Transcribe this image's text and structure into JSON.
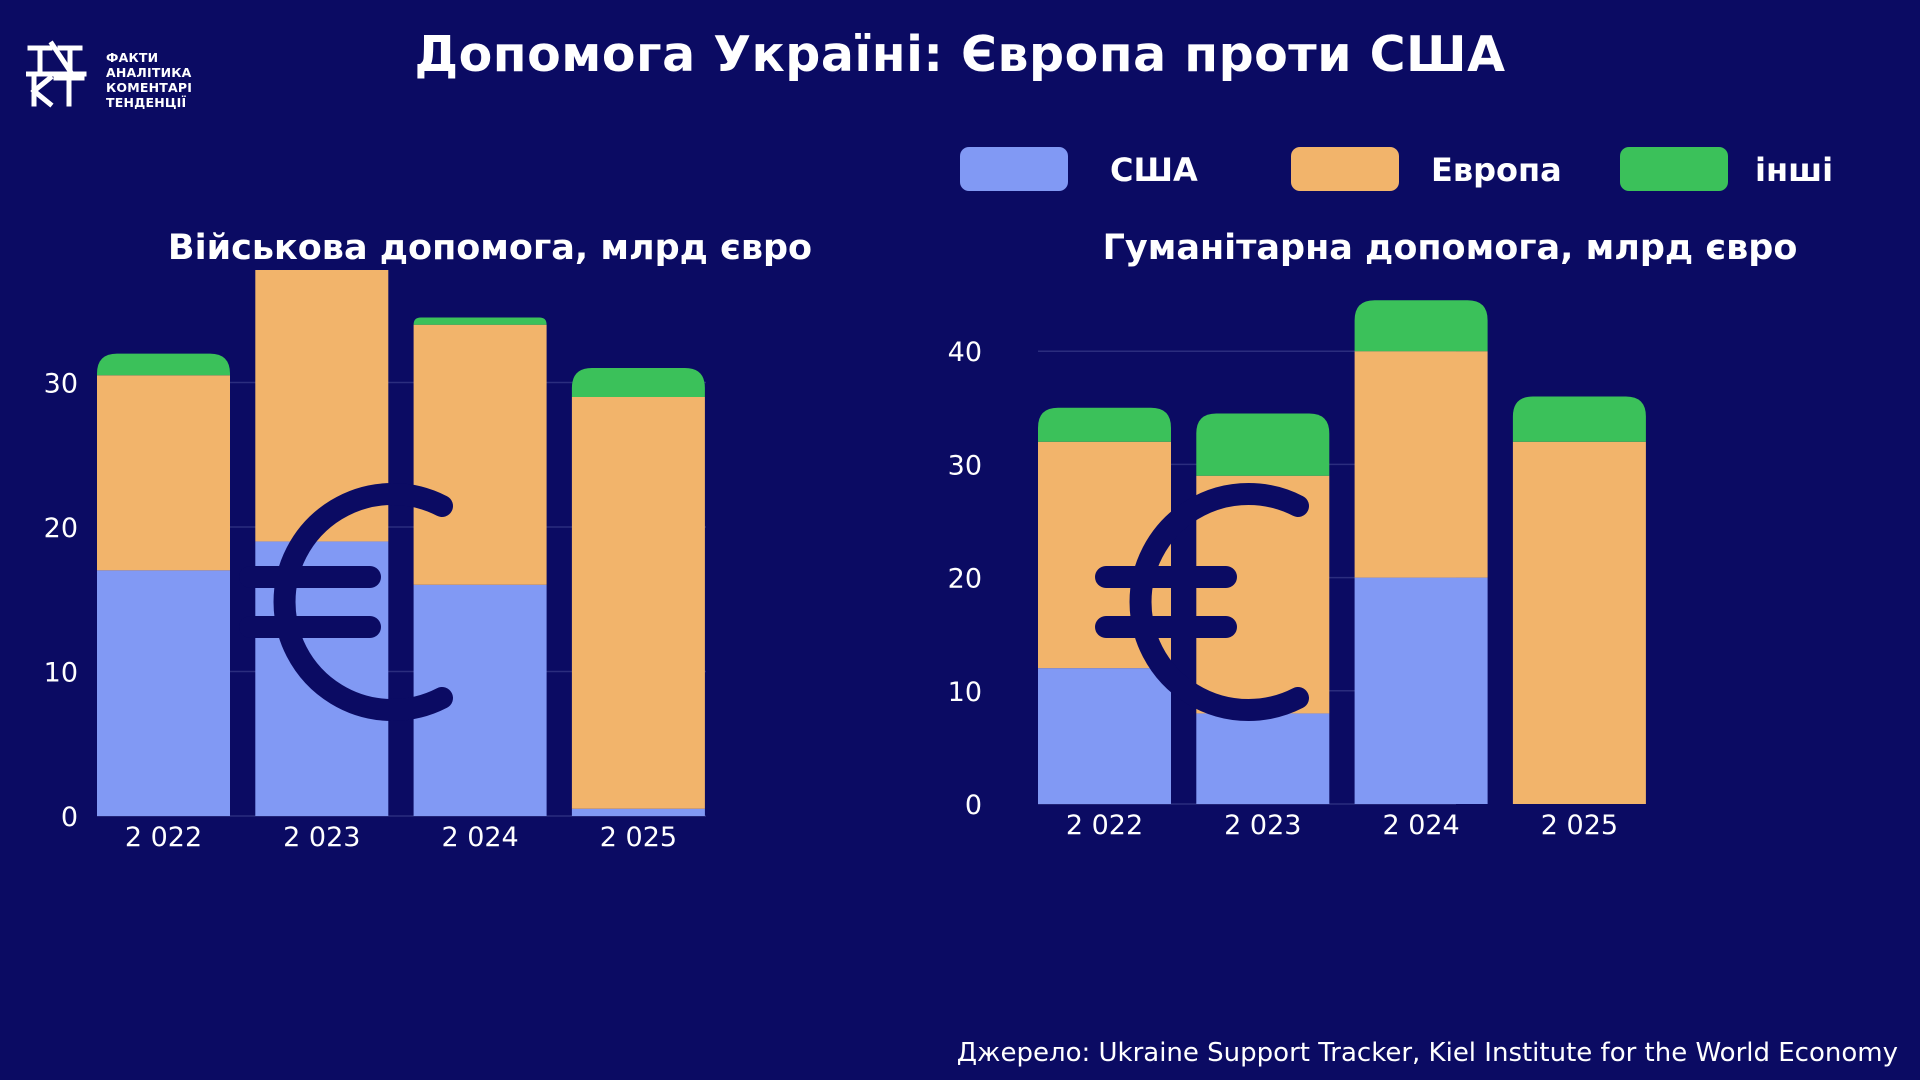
{
  "logo": {
    "mark_text": "ФАКТ",
    "lines": [
      "ФАКТИ",
      "АНАЛІТИКА",
      "КОМЕНТАРІ",
      "ТЕНДЕНЦІЇ"
    ]
  },
  "title": "Допомога Україні: Європа проти США",
  "legend": [
    {
      "label": "США",
      "color": "#8199f4"
    },
    {
      "label": "Европа",
      "color": "#f2b46b"
    },
    {
      "label": "інші",
      "color": "#3bc15a"
    }
  ],
  "colors": {
    "background": "#0b0b63",
    "grid": "#2b2d7e",
    "euro_symbol": "#0b0b63"
  },
  "chart_data": [
    {
      "type": "bar",
      "stacked": true,
      "title": "Військова допомога, млрд євро",
      "categories": [
        "2 022",
        "2 023",
        "2 024",
        "2 025"
      ],
      "series": [
        {
          "name": "США",
          "values": [
            17,
            19,
            16,
            0.5
          ]
        },
        {
          "name": "Европа",
          "values": [
            13.5,
            20,
            18,
            28.5
          ]
        },
        {
          "name": "інші",
          "values": [
            1.5,
            0.6,
            0.5,
            2
          ]
        }
      ],
      "ylim": [
        0,
        40
      ],
      "yticks": [
        0,
        10,
        20,
        30,
        40
      ],
      "grid": true,
      "legend": "top-right"
    },
    {
      "type": "bar",
      "stacked": true,
      "title": "Гуманітарна допомога, млрд євро",
      "categories": [
        "2 022",
        "2 023",
        "2 024",
        "2 025"
      ],
      "series": [
        {
          "name": "США",
          "values": [
            12,
            8,
            20,
            0
          ]
        },
        {
          "name": "Европа",
          "values": [
            20,
            21,
            20,
            32
          ]
        },
        {
          "name": "інші",
          "values": [
            3,
            5.5,
            4.5,
            4
          ]
        }
      ],
      "ylim": [
        0,
        50
      ],
      "yticks": [
        0,
        10,
        20,
        30,
        40,
        50
      ],
      "grid": true,
      "legend": "top-right"
    }
  ],
  "source": "Джерело: Ukraine Support Tracker, Kiel Institute for the World Economy"
}
